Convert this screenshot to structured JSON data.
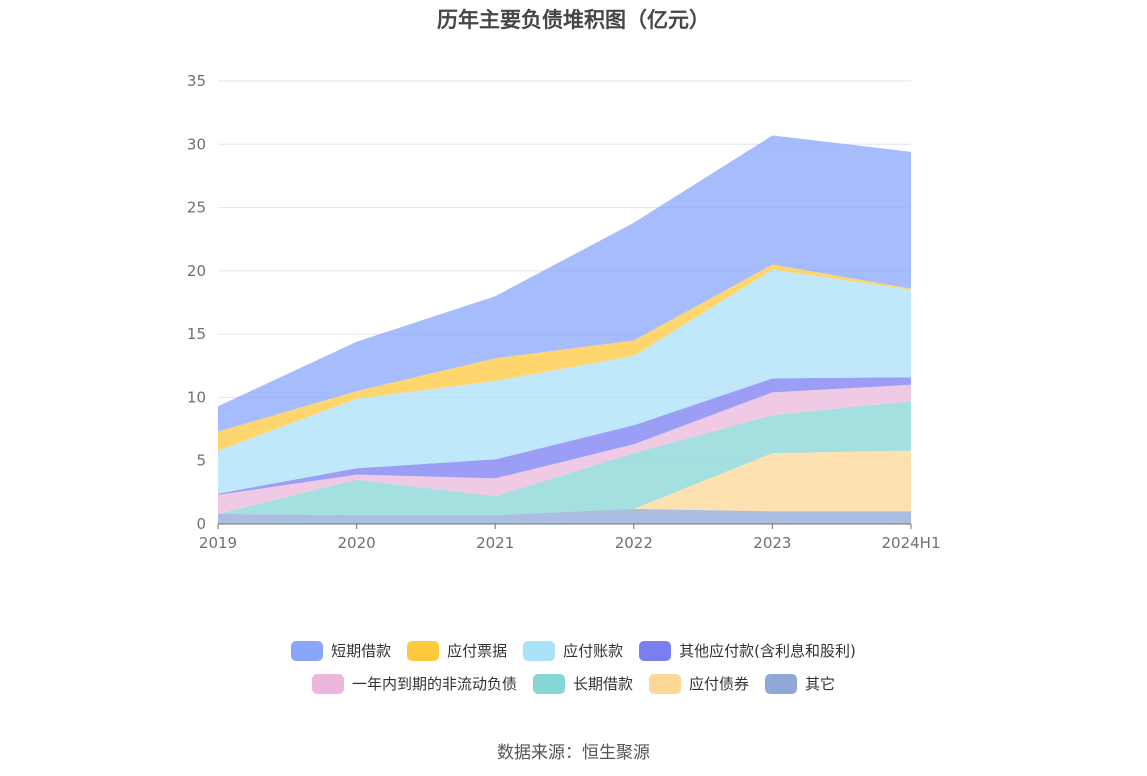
{
  "title": "历年主要负债堆积图（亿元）",
  "source": "数据来源：恒生聚源",
  "chart_data": {
    "type": "area",
    "stacked": true,
    "categories": [
      "2019",
      "2020",
      "2021",
      "2022",
      "2023",
      "2024H1"
    ],
    "ylim": [
      0,
      35
    ],
    "yticks": [
      0,
      5,
      10,
      15,
      20,
      25,
      30,
      35
    ],
    "grid": true,
    "legend_position": "bottom",
    "series": [
      {
        "name": "其它",
        "color": "#8fa8d8",
        "values": [
          0.8,
          0.7,
          0.7,
          1.2,
          1.0,
          1.0
        ]
      },
      {
        "name": "应付债券",
        "color": "#fdd795",
        "values": [
          0,
          0,
          0,
          0,
          4.6,
          4.8
        ]
      },
      {
        "name": "长期借款",
        "color": "#87d6d6",
        "values": [
          0,
          2.8,
          1.5,
          4.4,
          3.0,
          3.9
        ]
      },
      {
        "name": "一年内到期的非流动负债",
        "color": "#ebb8dc",
        "values": [
          1.5,
          0.4,
          1.4,
          0.7,
          1.8,
          1.3
        ]
      },
      {
        "name": "其他应付款(含利息和股利)",
        "color": "#7b7ef1",
        "values": [
          0.1,
          0.5,
          1.5,
          1.5,
          1.1,
          0.6
        ]
      },
      {
        "name": "应付账款",
        "color": "#a9e1f8",
        "values": [
          3.4,
          5.5,
          6.2,
          5.5,
          8.6,
          6.9
        ]
      },
      {
        "name": "应付票据",
        "color": "#ffc83d",
        "values": [
          1.5,
          0.6,
          1.8,
          1.2,
          0.4,
          0.1
        ]
      },
      {
        "name": "短期借款",
        "color": "#89a6fb",
        "values": [
          2.0,
          3.9,
          4.9,
          9.3,
          10.2,
          10.8
        ]
      }
    ],
    "legend": [
      [
        "短期借款",
        "应付票据",
        "应付账款",
        "其他应付款(含利息和股利)"
      ],
      [
        "一年内到期的非流动负债",
        "长期借款",
        "应付债券",
        "其它"
      ]
    ]
  }
}
